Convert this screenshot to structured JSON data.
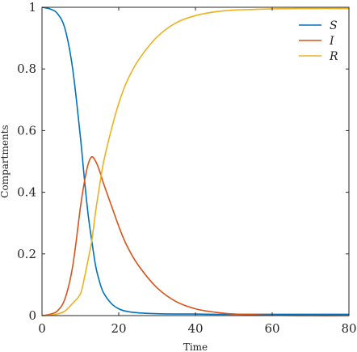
{
  "chart_data": {
    "type": "line",
    "xlabel": "Time",
    "ylabel": "Compartments",
    "xlim": [
      0,
      80
    ],
    "ylim": [
      0,
      1
    ],
    "x_ticks": [
      0,
      20,
      40,
      60,
      80
    ],
    "y_ticks": [
      0,
      0.2,
      0.4,
      0.6,
      0.8,
      1
    ],
    "y_tick_labels": [
      "0",
      "0.2",
      "0.4",
      "0.6",
      "0.8",
      "1"
    ],
    "grid": false,
    "legend_position": "top-right",
    "x": [
      0,
      2,
      4,
      6,
      8,
      10,
      11,
      12,
      13,
      14,
      15,
      16,
      18,
      20,
      22,
      25,
      30,
      35,
      40,
      45,
      50,
      55,
      60,
      70,
      80
    ],
    "series": [
      {
        "name": "S",
        "color": "#0072BD",
        "values": [
          1.0,
          0.995,
          0.98,
          0.93,
          0.8,
          0.58,
          0.45,
          0.33,
          0.24,
          0.16,
          0.11,
          0.075,
          0.04,
          0.022,
          0.014,
          0.009,
          0.006,
          0.005,
          0.005,
          0.004,
          0.004,
          0.004,
          0.004,
          0.004,
          0.004
        ]
      },
      {
        "name": "I",
        "color": "#D95319",
        "values": [
          0.0,
          0.004,
          0.015,
          0.055,
          0.16,
          0.35,
          0.43,
          0.49,
          0.515,
          0.5,
          0.47,
          0.43,
          0.36,
          0.29,
          0.23,
          0.165,
          0.09,
          0.045,
          0.022,
          0.011,
          0.005,
          0.003,
          0.001,
          0.0,
          0.0
        ]
      },
      {
        "name": "R",
        "color": "#EDB120",
        "values": [
          0.0,
          0.001,
          0.005,
          0.015,
          0.04,
          0.07,
          0.12,
          0.18,
          0.245,
          0.34,
          0.42,
          0.495,
          0.6,
          0.688,
          0.756,
          0.826,
          0.904,
          0.95,
          0.973,
          0.985,
          0.991,
          0.993,
          0.995,
          0.996,
          0.996
        ]
      }
    ]
  }
}
